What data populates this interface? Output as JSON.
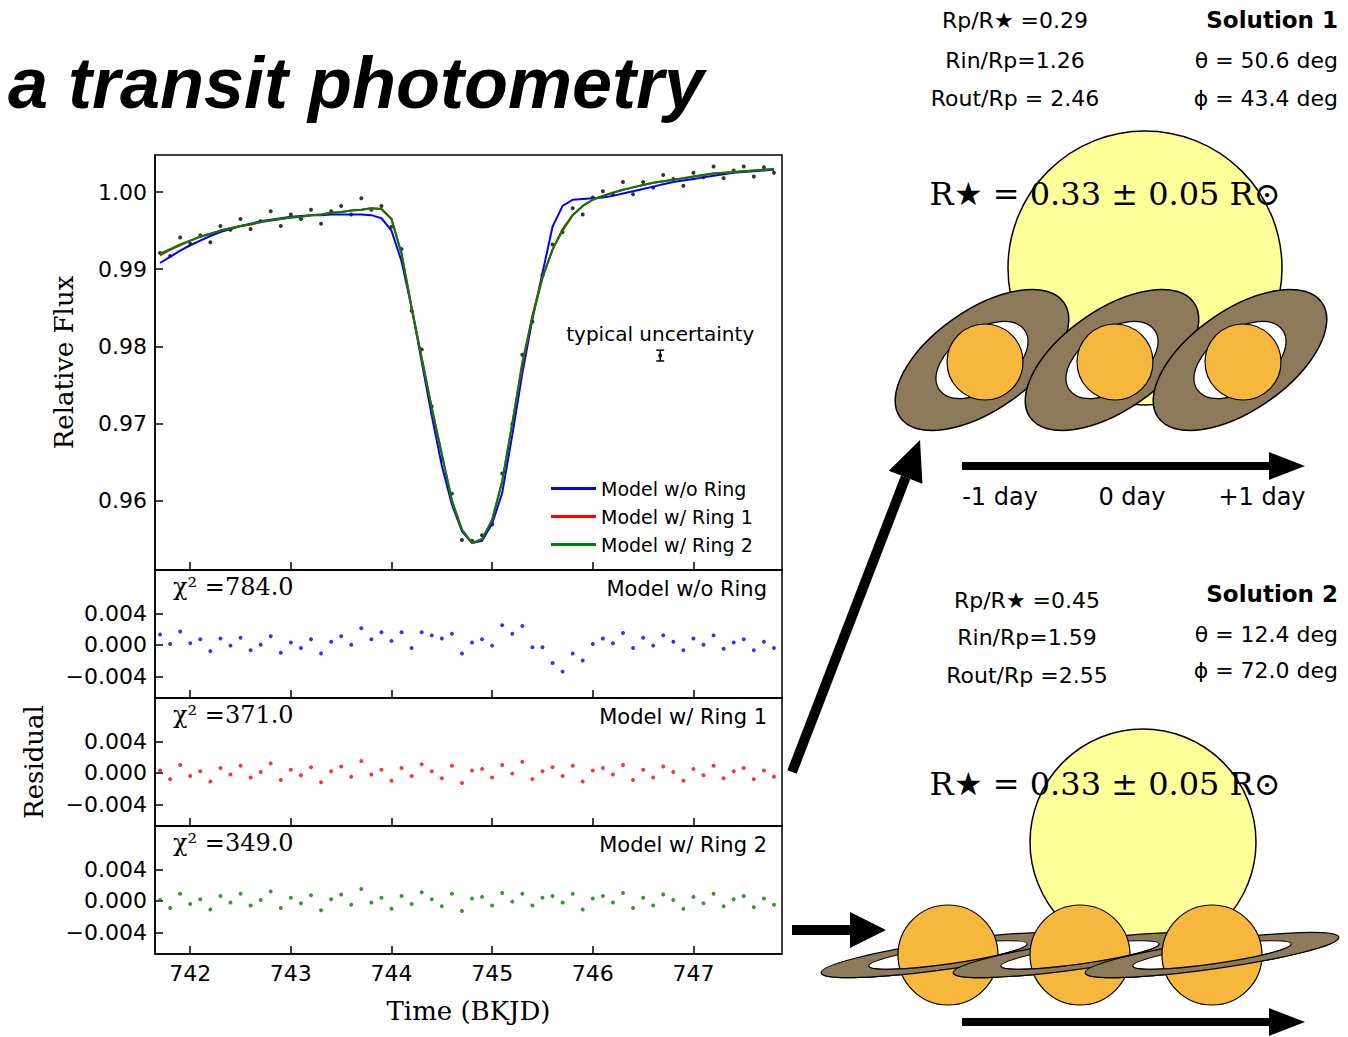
{
  "title": "a transit photometry",
  "chart_data": [
    {
      "type": "line",
      "ylabel": "Relative Flux",
      "x": [
        741.7,
        741.8,
        741.9,
        742.0,
        742.1,
        742.2,
        742.3,
        742.4,
        742.5,
        742.6,
        742.7,
        742.8,
        742.9,
        743.0,
        743.1,
        743.2,
        743.3,
        743.4,
        743.5,
        743.6,
        743.7,
        743.8,
        743.9,
        744.0,
        744.1,
        744.2,
        744.3,
        744.4,
        744.5,
        744.6,
        744.7,
        744.8,
        744.9,
        745.0,
        745.1,
        745.2,
        745.3,
        745.4,
        745.5,
        745.6,
        745.7,
        745.8,
        745.9,
        746.0,
        746.1,
        746.2,
        746.3,
        746.4,
        746.5,
        746.6,
        746.7,
        746.8,
        746.9,
        747.0,
        747.1,
        747.2,
        747.3,
        747.4,
        747.5,
        747.6,
        747.7,
        747.8
      ],
      "series": [
        {
          "type": "scatter",
          "color": "#000000",
          "marker": "o",
          "values": [
            0.9921,
            0.9917,
            0.9941,
            0.9933,
            0.9944,
            0.9935,
            0.9956,
            0.9951,
            0.9965,
            0.9952,
            0.9962,
            0.9975,
            0.9956,
            0.9971,
            0.9965,
            0.9977,
            0.9959,
            0.9975,
            0.9982,
            0.9971,
            0.9992,
            0.9977,
            0.9982,
            0.9955,
            0.9926,
            0.9846,
            0.9796,
            0.9722,
            0.9653,
            0.9609,
            0.9549,
            0.9548,
            0.9555,
            0.9569,
            0.9635,
            0.9699,
            0.9789,
            0.9832,
            0.9892,
            0.9932,
            0.9948,
            0.9979,
            0.9971,
            0.9993,
            1.0001,
            0.9997,
            1.0013,
            0.9997,
            1.0013,
            1.0006,
            1.0022,
            1.0017,
            1.0008,
            1.0025,
            1.0019,
            1.0033,
            1.0018,
            1.0028,
            1.0033,
            1.002,
            1.0032,
            1.0025
          ]
        },
        {
          "type": "line",
          "name": "Model w/o Ring",
          "color": "#0000ff",
          "line_style": "solid",
          "values": [
            0.9908,
            0.9916,
            0.9924,
            0.9931,
            0.9937,
            0.9943,
            0.9948,
            0.9952,
            0.9956,
            0.9959,
            0.9962,
            0.9964,
            0.9966,
            0.9968,
            0.9969,
            0.997,
            0.997,
            0.9971,
            0.9971,
            0.9971,
            0.9971,
            0.997,
            0.9966,
            0.995,
            0.991,
            0.985,
            0.978,
            0.971,
            0.9645,
            0.9595,
            0.956,
            0.9545,
            0.9548,
            0.957,
            0.961,
            0.9685,
            0.9765,
            0.9835,
            0.9895,
            0.9955,
            0.9982,
            0.999,
            0.9991,
            0.9992,
            0.9993,
            0.9995,
            0.9998,
            1.0001,
            1.0004,
            1.0007,
            1.001,
            1.0013,
            1.0015,
            1.0017,
            1.0019,
            1.0021,
            1.0023,
            1.0025,
            1.0026,
            1.0027,
            1.0028,
            1.0029
          ]
        },
        {
          "type": "line",
          "name": "Model w/ Ring 1",
          "color": "#ff0000",
          "line_style": "solid",
          "values": [
            0.9918,
            0.9925,
            0.9931,
            0.9937,
            0.9942,
            0.9946,
            0.995,
            0.9953,
            0.9956,
            0.9958,
            0.9961,
            0.9963,
            0.9965,
            0.9967,
            0.9968,
            0.997,
            0.9971,
            0.9973,
            0.9974,
            0.9976,
            0.9977,
            0.9979,
            0.9978,
            0.9965,
            0.992,
            0.985,
            0.9785,
            0.972,
            0.966,
            0.96,
            0.9562,
            0.9545,
            0.955,
            0.9575,
            0.9625,
            0.97,
            0.9775,
            0.984,
            0.989,
            0.9925,
            0.9952,
            0.997,
            0.9982,
            0.999,
            0.9995,
            0.9999,
            1.0003,
            1.0006,
            1.0009,
            1.0012,
            1.0014,
            1.0016,
            1.0018,
            1.002,
            1.0022,
            1.0024,
            1.0025,
            1.0026,
            1.0027,
            1.0028,
            1.0029,
            1.003
          ]
        },
        {
          "type": "line",
          "name": "Model w/ Ring 2",
          "color": "#008000",
          "line_style": "solid",
          "values": [
            0.992,
            0.9926,
            0.9932,
            0.9937,
            0.9942,
            0.9946,
            0.995,
            0.9953,
            0.9956,
            0.9958,
            0.9961,
            0.9963,
            0.9965,
            0.9967,
            0.9968,
            0.997,
            0.9971,
            0.9973,
            0.9974,
            0.9976,
            0.9977,
            0.9979,
            0.9978,
            0.9965,
            0.992,
            0.985,
            0.9785,
            0.972,
            0.966,
            0.96,
            0.9562,
            0.9545,
            0.955,
            0.9575,
            0.9625,
            0.97,
            0.978,
            0.9838,
            0.9888,
            0.9926,
            0.995,
            0.997,
            0.9982,
            0.999,
            0.9995,
            0.9999,
            1.0003,
            1.0006,
            1.0009,
            1.0012,
            1.0014,
            1.0016,
            1.0018,
            1.002,
            1.0022,
            1.0024,
            1.0025,
            1.0026,
            1.0027,
            1.0028,
            1.0029,
            1.003
          ]
        }
      ],
      "annotations": [
        {
          "text": "typical uncertainty",
          "x": 746.67,
          "y": 0.9788,
          "error": 0.0007
        }
      ],
      "xlim": [
        741.65,
        747.88
      ],
      "xticks": [
        742,
        743,
        744,
        745,
        746,
        747
      ],
      "ylim": [
        0.951,
        1.0048
      ],
      "yticks": [
        0.96,
        0.97,
        0.98,
        0.99,
        {
          "value": 1,
          "label": "1.00"
        }
      ],
      "grid": false,
      "legend": "lower right",
      "tick_labels": "y"
    },
    {
      "type": "scatter",
      "annotations": [
        "χ² =784.0",
        "Model w/o Ring"
      ],
      "x": [
        741.7,
        741.8,
        741.9,
        742.0,
        742.1,
        742.2,
        742.3,
        742.4,
        742.5,
        742.6,
        742.7,
        742.8,
        742.9,
        743.0,
        743.1,
        743.2,
        743.3,
        743.4,
        743.5,
        743.6,
        743.7,
        743.8,
        743.9,
        744.0,
        744.1,
        744.2,
        744.3,
        744.4,
        744.5,
        744.6,
        744.7,
        744.8,
        744.9,
        745.0,
        745.1,
        745.2,
        745.3,
        745.4,
        745.5,
        745.6,
        745.7,
        745.8,
        745.9,
        746.0,
        746.1,
        746.2,
        746.3,
        746.4,
        746.5,
        746.6,
        746.7,
        746.8,
        746.9,
        747.0,
        747.1,
        747.2,
        747.3,
        747.4,
        747.5,
        747.6,
        747.7,
        747.8
      ],
      "series": [
        {
          "color": "#0000ff",
          "marker": "o",
          "values": [
            0.0013,
            0.0001,
            0.0017,
            0.0002,
            0.0007,
            -0.0008,
            0.0008,
            -0.0001,
            0.0009,
            -0.0007,
            0,
            0.0011,
            -0.001,
            0.0003,
            -0.0004,
            0.0007,
            -0.0011,
            0.0004,
            0.0011,
            0,
            0.0021,
            0.0007,
            0.0016,
            0.0005,
            0.0016,
            -0.0004,
            0.0016,
            0.0012,
            0.0008,
            0.0014,
            -0.0011,
            0.0003,
            0.0007,
            -0.0001,
            0.0025,
            0.0014,
            0.0024,
            -0.0003,
            -0.0003,
            -0.0023,
            -0.0034,
            -0.0011,
            -0.002,
            0.0001,
            0.0008,
            0.0002,
            0.0015,
            -0.0004,
            0.0009,
            -0.0001,
            0.0012,
            0.0004,
            -0.0007,
            0.0008,
            0,
            0.0012,
            -0.0005,
            0.0003,
            0.0007,
            -0.0007,
            0.0004,
            -0.0004
          ]
        }
      ],
      "xlim": [
        741.65,
        747.88
      ],
      "xticks": [
        742,
        743,
        744,
        745,
        746,
        747
      ],
      "ylim": [
        -0.00675,
        0.0095
      ],
      "yticks": [
        {
          "value": -0.004,
          "label": "−0.004"
        },
        {
          "value": 0,
          "label": "0.000"
        },
        0.004
      ],
      "grid": false,
      "tick_labels": "y"
    },
    {
      "type": "scatter",
      "ylabel": "Residual",
      "annotations": [
        "χ² =371.0",
        "Model w/ Ring 1"
      ],
      "x": [
        741.7,
        741.8,
        741.9,
        742.0,
        742.1,
        742.2,
        742.3,
        742.4,
        742.5,
        742.6,
        742.7,
        742.8,
        742.9,
        743.0,
        743.1,
        743.2,
        743.3,
        743.4,
        743.5,
        743.6,
        743.7,
        743.8,
        743.9,
        744.0,
        744.1,
        744.2,
        744.3,
        744.4,
        744.5,
        744.6,
        744.7,
        744.8,
        744.9,
        745.0,
        745.1,
        745.2,
        745.3,
        745.4,
        745.5,
        745.6,
        745.7,
        745.8,
        745.9,
        746.0,
        746.1,
        746.2,
        746.3,
        746.4,
        746.5,
        746.6,
        746.7,
        746.8,
        746.9,
        747.0,
        747.1,
        747.2,
        747.3,
        747.4,
        747.5,
        747.6,
        747.7,
        747.8
      ],
      "series": [
        {
          "color": "#ff0000",
          "marker": "o",
          "values": [
            0.0003,
            -0.0008,
            0.001,
            -0.0004,
            0.0002,
            -0.0011,
            0.0006,
            -0.0002,
            0.0009,
            -0.0006,
            0.0001,
            0.0012,
            -0.0009,
            0.0004,
            -0.0003,
            0.0007,
            -0.0012,
            0.0002,
            0.0008,
            -0.0005,
            0.0015,
            -0.0002,
            0.0004,
            -0.001,
            0.0006,
            -0.0004,
            0.0011,
            0.0002,
            -0.0007,
            0.0009,
            -0.0013,
            0.0003,
            0.0005,
            -0.0006,
            0.001,
            -0.0001,
            0.0014,
            -0.0008,
            0.0002,
            0.0007,
            -0.0004,
            0.0009,
            -0.0011,
            0.0003,
            0.0006,
            -0.0002,
            0.001,
            -0.0009,
            0.0004,
            -0.0006,
            0.0008,
            0.0001,
            -0.001,
            0.0005,
            -0.0003,
            0.0009,
            -0.0007,
            0.0002,
            0.0006,
            -0.0008,
            0.0003,
            -0.0005
          ]
        }
      ],
      "xlim": [
        741.65,
        747.88
      ],
      "xticks": [
        742,
        743,
        744,
        745,
        746,
        747
      ],
      "ylim": [
        -0.00675,
        0.0095
      ],
      "yticks": [
        {
          "value": -0.004,
          "label": "−0.004"
        },
        {
          "value": 0,
          "label": "0.000"
        },
        0.004
      ],
      "grid": false,
      "tick_labels": "y"
    },
    {
      "type": "scatter",
      "xlabel": "Time (BKJD)",
      "annotations": [
        "χ² =349.0",
        "Model w/ Ring 2"
      ],
      "x": [
        741.7,
        741.8,
        741.9,
        742.0,
        742.1,
        742.2,
        742.3,
        742.4,
        742.5,
        742.6,
        742.7,
        742.8,
        742.9,
        743.0,
        743.1,
        743.2,
        743.3,
        743.4,
        743.5,
        743.6,
        743.7,
        743.8,
        743.9,
        744.0,
        744.1,
        744.2,
        744.3,
        744.4,
        744.5,
        744.6,
        744.7,
        744.8,
        744.9,
        745.0,
        745.1,
        745.2,
        745.3,
        745.4,
        745.5,
        745.6,
        745.7,
        745.8,
        745.9,
        746.0,
        746.1,
        746.2,
        746.3,
        746.4,
        746.5,
        746.6,
        746.7,
        746.8,
        746.9,
        747.0,
        747.1,
        747.2,
        747.3,
        747.4,
        747.5,
        747.6,
        747.7,
        747.8
      ],
      "series": [
        {
          "color": "#008000",
          "marker": "o",
          "values": [
            0.0001,
            -0.0009,
            0.0009,
            -0.0004,
            0.0002,
            -0.0011,
            0.0006,
            -0.0002,
            0.0009,
            -0.0006,
            0.0001,
            0.0012,
            -0.0009,
            0.0004,
            -0.0003,
            0.0007,
            -0.0012,
            0.0002,
            0.0008,
            -0.0005,
            0.0015,
            -0.0002,
            0.0004,
            -0.001,
            0.0006,
            -0.0004,
            0.0011,
            0.0002,
            -0.0007,
            0.0009,
            -0.0013,
            0.0003,
            0.0005,
            -0.0006,
            0.001,
            -0.0001,
            0.0009,
            -0.0006,
            0.0004,
            0.0006,
            -0.0002,
            0.0009,
            -0.0011,
            0.0003,
            0.0006,
            -0.0002,
            0.001,
            -0.0009,
            0.0004,
            -0.0006,
            0.0008,
            0.0001,
            -0.001,
            0.0005,
            -0.0003,
            0.0009,
            -0.0007,
            0.0002,
            0.0006,
            -0.0008,
            0.0003,
            -0.0005
          ]
        }
      ],
      "xlim": [
        741.65,
        747.88
      ],
      "xticks": [
        742,
        743,
        744,
        745,
        746,
        747
      ],
      "ylim": [
        -0.00675,
        0.0095
      ],
      "yticks": [
        {
          "value": -0.004,
          "label": "−0.004"
        },
        {
          "value": 0,
          "label": "0.000"
        },
        0.004
      ],
      "grid": false
    }
  ],
  "diagrams": [
    {
      "title": "Solution 1",
      "params": [
        "Rp/R★ =0.29",
        "Rin/Rp=1.26",
        "Rout/Rp = 2.46"
      ],
      "angles": [
        "θ = 50.6 deg",
        "ϕ = 43.4 deg"
      ],
      "star": "R★ = 0.33 ± 0.05 R⊙",
      "times": [
        "-1 day",
        "0 day",
        "+1 day"
      ]
    },
    {
      "title": "Solution 2",
      "params": [
        "Rp/R★ =0.45",
        "Rin/Rp=1.59",
        "Rout/Rp =2.55"
      ],
      "angles": [
        "θ = 12.4 deg",
        "ϕ = 72.0 deg"
      ],
      "star": "R★ = 0.33 ± 0.05 R⊙"
    }
  ]
}
